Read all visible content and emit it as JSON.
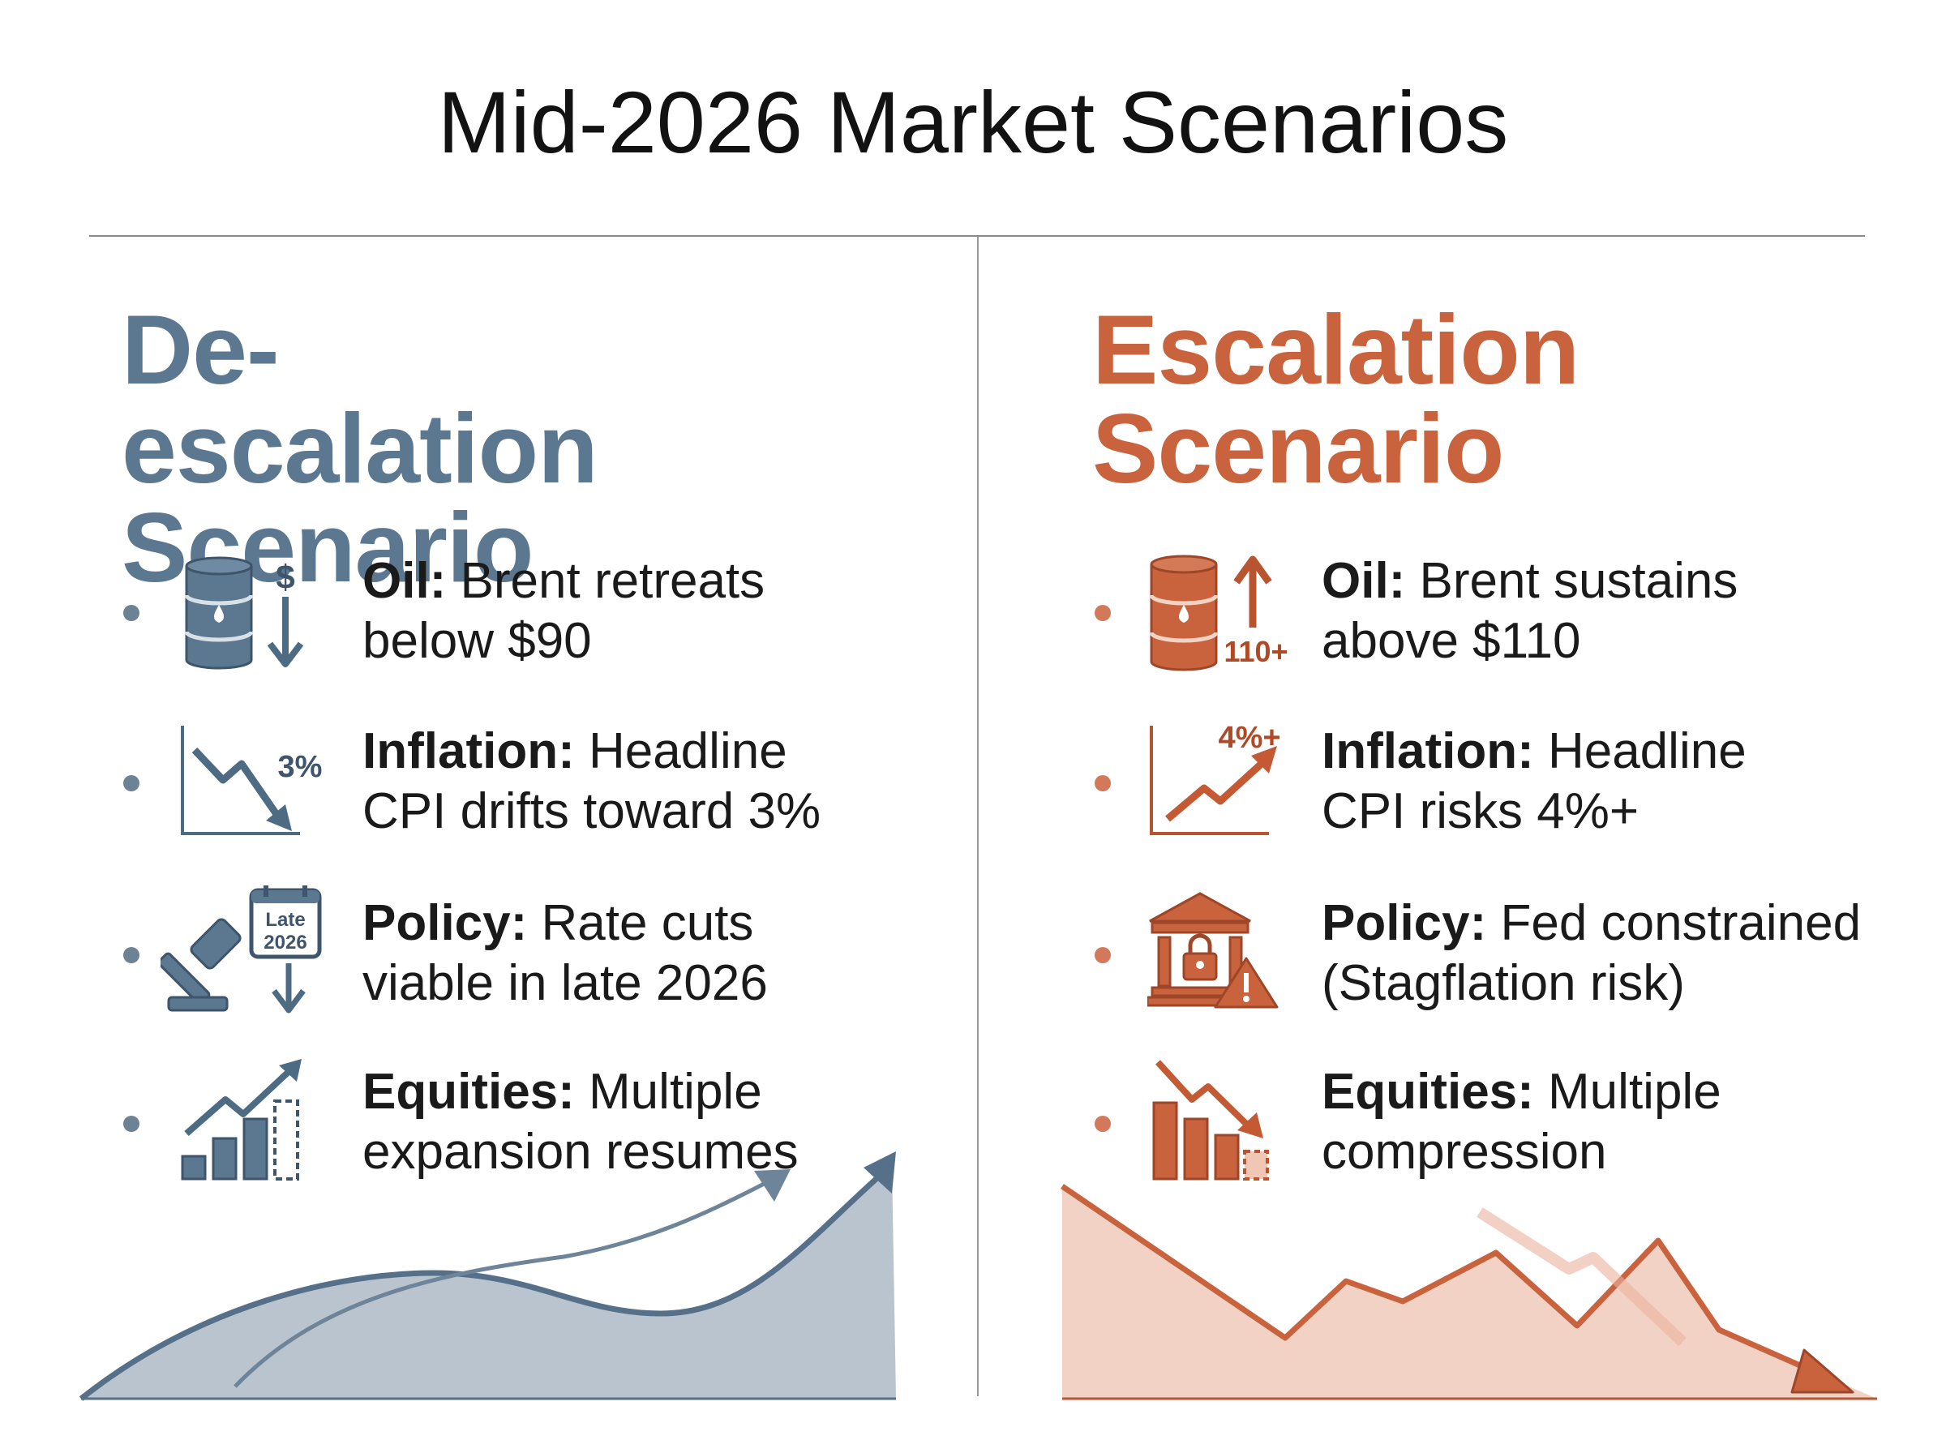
{
  "title": "Mid-2026 Market Scenarios",
  "left": {
    "heading_line1": "De-escalation",
    "heading_line2": "Scenario",
    "accent": "#5c7891",
    "items": [
      {
        "label": "Oil:",
        "line1": " Brent retreats",
        "line2": "below $90",
        "icon": "oil-barrel-price-down-icon",
        "badge": "$"
      },
      {
        "label": "Inflation:",
        "line1": " Headline",
        "line2": "CPI drifts toward 3%",
        "icon": "chart-trend-down-icon",
        "badge": "3%"
      },
      {
        "label": "Policy:",
        "line1": " Rate cuts",
        "line2": "viable in late 2026",
        "icon": "gavel-calendar-icon",
        "badge_line1": "Late",
        "badge_line2": "2026"
      },
      {
        "label": "Equities:",
        "line1": " Multiple",
        "line2": "expansion resumes",
        "icon": "bar-chart-rising-icon"
      }
    ]
  },
  "right": {
    "heading_line1": "Escalation",
    "heading_line2": "Scenario",
    "accent": "#c9633e",
    "items": [
      {
        "label": "Oil:",
        "line1": " Brent sustains",
        "line2": "above $110",
        "icon": "oil-barrel-price-up-icon",
        "badge": "110+"
      },
      {
        "label": "Inflation:",
        "line1": " Headline",
        "line2": "CPI risks 4%+",
        "icon": "chart-trend-up-icon",
        "badge": "4%+"
      },
      {
        "label": "Policy:",
        "line1": " Fed constrained",
        "line2": "(Stagflation risk)",
        "icon": "bank-lock-warning-icon"
      },
      {
        "label": "Equities:",
        "line1": " Multiple",
        "line2": "compression",
        "icon": "bar-chart-falling-icon"
      }
    ]
  }
}
